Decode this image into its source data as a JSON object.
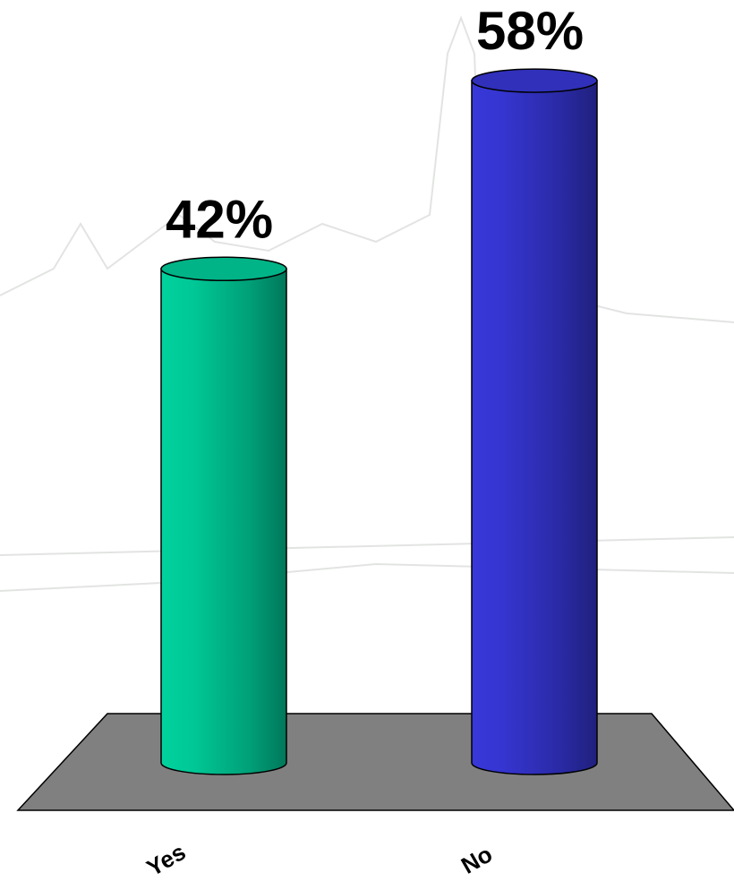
{
  "chart_data": {
    "type": "cylinder-bar",
    "categories": [
      "Yes",
      "No"
    ],
    "values": [
      42,
      58
    ],
    "value_labels": [
      "42%",
      "58%"
    ],
    "colors": [
      "#00c896",
      "#3535d0"
    ]
  }
}
